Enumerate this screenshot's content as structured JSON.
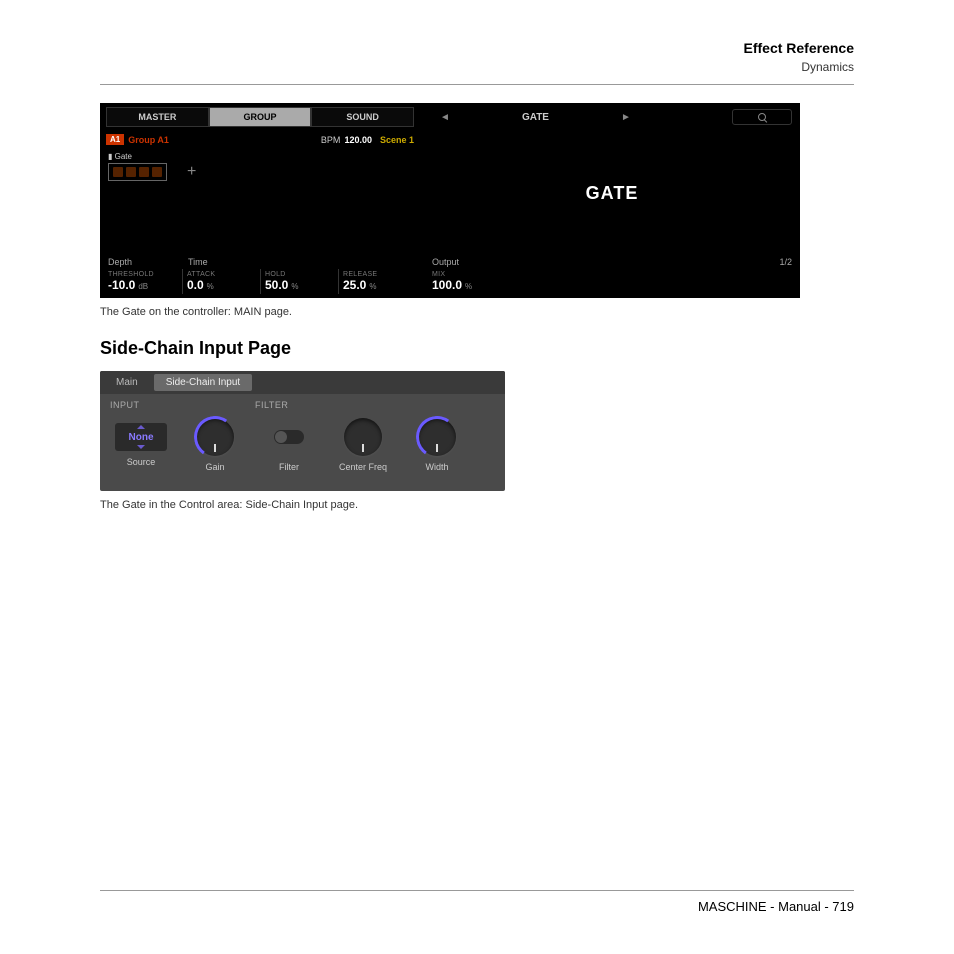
{
  "header": {
    "title": "Effect Reference",
    "subtitle": "Dynamics"
  },
  "controller": {
    "tabs": [
      "MASTER",
      "GROUP",
      "SOUND"
    ],
    "active_tab_index": 1,
    "badge": "A1",
    "group_name": "Group A1",
    "bpm_label": "BPM",
    "bpm_value": "120.00",
    "scene": "Scene 1",
    "effect_slot_label": "Gate",
    "sections": {
      "left1": "Depth",
      "left2": "Time"
    },
    "params": [
      {
        "name": "THRESHOLD",
        "value": "-10.0",
        "unit": "dB"
      },
      {
        "name": "ATTACK",
        "value": "0.0",
        "unit": "%"
      },
      {
        "name": "HOLD",
        "value": "50.0",
        "unit": "%"
      },
      {
        "name": "RELEASE",
        "value": "25.0",
        "unit": "%"
      }
    ],
    "right": {
      "nav_title": "GATE",
      "big_label": "GATE",
      "section_label": "Output",
      "page": "1/2",
      "params": [
        {
          "name": "MIX",
          "value": "100.0",
          "unit": "%"
        }
      ]
    }
  },
  "caption1": "The Gate on the controller: MAIN page.",
  "heading": "Side-Chain Input Page",
  "sidechain": {
    "tabs": [
      "Main",
      "Side-Chain Input"
    ],
    "active_tab_index": 1,
    "section_labels": [
      "INPUT",
      "FILTER"
    ],
    "source_value": "None",
    "controls": [
      {
        "label": "Source",
        "type": "selector"
      },
      {
        "label": "Gain",
        "type": "knob",
        "accent": true
      },
      {
        "label": "Filter",
        "type": "toggle"
      },
      {
        "label": "Center Freq",
        "type": "knob",
        "accent": false
      },
      {
        "label": "Width",
        "type": "knob",
        "accent": true
      }
    ]
  },
  "caption2": "The Gate in the Control area: Side-Chain Input page.",
  "footer": "MASCHINE - Manual - 719",
  "colors": {
    "page_bg": "#ffffff",
    "controller_bg": "#000000",
    "accent_orange": "#cc3300",
    "accent_yellow": "#ccaa00",
    "knob_blue": "#6a5aff",
    "panel_gray": "#4a4a4a"
  }
}
